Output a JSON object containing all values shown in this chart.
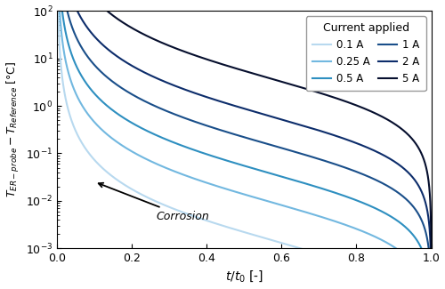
{
  "currents": [
    0.1,
    0.25,
    0.5,
    1.0,
    2.0,
    5.0
  ],
  "colors": [
    "#b8d9ef",
    "#72b8e0",
    "#2e8fc0",
    "#1a4f8a",
    "#0d2d6b",
    "#060f2e"
  ],
  "labels": [
    "0.1 A",
    "0.25 A",
    "0.5 A",
    "1 A",
    "2 A",
    "5 A"
  ],
  "ylim_min": 0.001,
  "ylim_max": 100.0,
  "xlim_min": 0.0,
  "xlim_max": 1.0,
  "scale_factor": 0.0025,
  "exponent": 2.0,
  "figwidth": 5.0,
  "figheight": 3.25,
  "dpi": 100
}
